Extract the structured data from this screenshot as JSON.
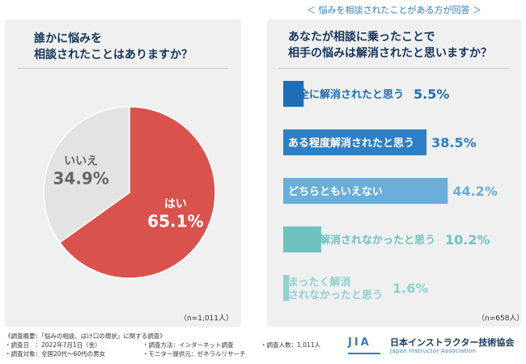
{
  "sub_header": "＜ 悩みを相談されたことがある方が回答 ＞",
  "left": {
    "title": "誰かに悩みを\n相談されたことはありますか？",
    "n_label": "（n=1,011人）"
  },
  "right": {
    "title": "あなたが相談に乗ったことで\n相手の悩みは解消されたと思いますか？",
    "n_label": "（n=658人）"
  },
  "chart_data": [
    {
      "type": "pie",
      "slices": [
        {
          "label": "はい",
          "value": 65.1,
          "value_label": "65.1%",
          "color": "#d9524e",
          "text_color": "#ffffff"
        },
        {
          "label": "いいえ",
          "value": 34.9,
          "value_label": "34.9%",
          "color": "#e3e3e3",
          "text_color": "#666666"
        }
      ]
    },
    {
      "type": "bar",
      "orientation": "horizontal",
      "categories": [
        "完全に解消されたと思う",
        "ある程度解消されたと思う",
        "どちらともいえない",
        "あまり解消されなかったと思う",
        "まったく解消\nされなかったと思う"
      ],
      "values": [
        5.5,
        38.5,
        44.2,
        10.2,
        1.6
      ],
      "value_labels": [
        "5.5%",
        "38.5%",
        "44.2%",
        "10.2%",
        "1.6%"
      ],
      "colors": [
        "#1f6db5",
        "#2f7fc4",
        "#6aaed9",
        "#6fc1c2",
        "#8fd1d0"
      ],
      "xlim": [
        0,
        55
      ]
    }
  ],
  "footer": {
    "overview": "《調査概要：「悩みの相談、はけ口の現状」に関する調査》",
    "rows": [
      [
        "・調査日　：2022年7月1日（金）",
        "・調査方法：インターネット調査",
        "・調査人数：1,011人"
      ],
      [
        "・調査対象：全国20代〜60代の男女",
        "・モニター提供元：ゼネラルリサーチ",
        ""
      ]
    ]
  },
  "logo": {
    "mark": "JIA",
    "name": "日本インストラクター技術協会",
    "sub": "Japan Instructor Association"
  }
}
